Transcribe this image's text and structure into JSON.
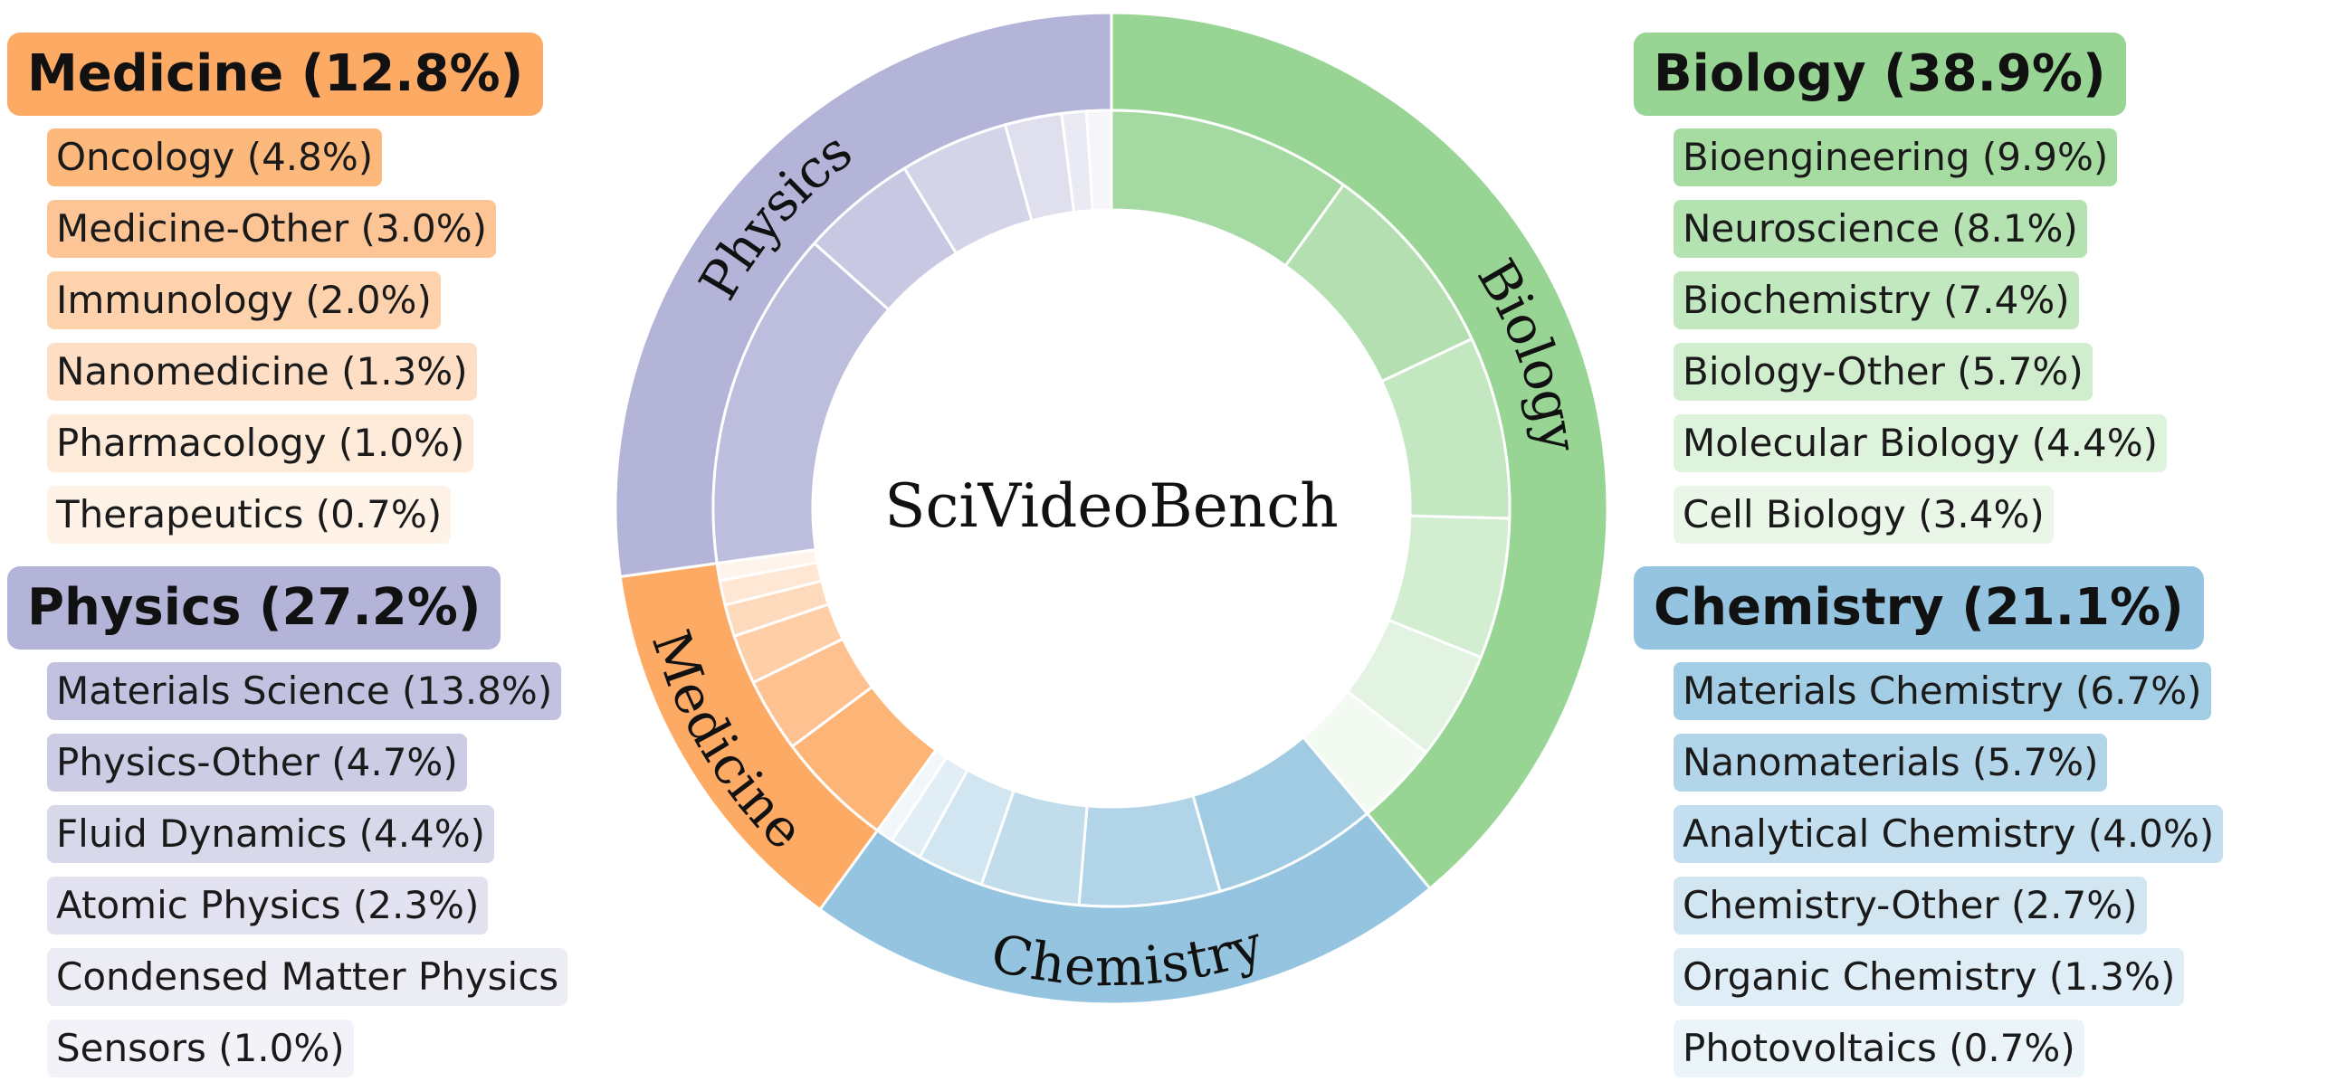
{
  "chart_data": {
    "type": "pie",
    "title": "SciVideoBench",
    "categories": [
      {
        "name": "Biology",
        "label": "Biology (38.9%)",
        "value": 38.9,
        "color": "#98d594",
        "side": "right",
        "subcategories": [
          {
            "label": "Bioengineering (9.9%)",
            "value": 9.9
          },
          {
            "label": "Neuroscience (8.1%)",
            "value": 8.1
          },
          {
            "label": "Biochemistry (7.4%)",
            "value": 7.4
          },
          {
            "label": "Biology-Other (5.7%)",
            "value": 5.7
          },
          {
            "label": "Molecular Biology (4.4%)",
            "value": 4.4
          },
          {
            "label": "Cell Biology (3.4%)",
            "value": 3.4
          }
        ]
      },
      {
        "name": "Chemistry",
        "label": "Chemistry (21.1%)",
        "value": 21.1,
        "color": "#94c4df",
        "side": "right",
        "subcategories": [
          {
            "label": "Materials Chemistry (6.7%)",
            "value": 6.7
          },
          {
            "label": "Nanomaterials (5.7%)",
            "value": 5.7
          },
          {
            "label": "Analytical Chemistry (4.0%)",
            "value": 4.0
          },
          {
            "label": "Chemistry-Other (2.7%)",
            "value": 2.7
          },
          {
            "label": "Organic Chemistry (1.3%)",
            "value": 1.3
          },
          {
            "label": "Photovoltaics (0.7%)",
            "value": 0.7
          }
        ]
      },
      {
        "name": "Medicine",
        "label": "Medicine (12.8%)",
        "value": 12.8,
        "color": "#fdaa65",
        "side": "left",
        "subcategories": [
          {
            "label": "Oncology (4.8%)",
            "value": 4.8
          },
          {
            "label": "Medicine-Other (3.0%)",
            "value": 3.0
          },
          {
            "label": "Immunology (2.0%)",
            "value": 2.0
          },
          {
            "label": "Nanomedicine (1.3%)",
            "value": 1.3
          },
          {
            "label": "Pharmacology (1.0%)",
            "value": 1.0
          },
          {
            "label": "Therapeutics (0.7%)",
            "value": 0.7
          }
        ]
      },
      {
        "name": "Physics",
        "label": "Physics (27.2%)",
        "value": 27.2,
        "color": "#b4b4d8",
        "side": "left",
        "subcategories": [
          {
            "label": "Materials Science (13.8%)",
            "value": 13.8
          },
          {
            "label": "Physics-Other (4.7%)",
            "value": 4.7
          },
          {
            "label": "Fluid Dynamics (4.4%)",
            "value": 4.4
          },
          {
            "label": "Atomic Physics (2.3%)",
            "value": 2.3
          },
          {
            "label": "Condensed Matter Physics",
            "value": 1.0
          },
          {
            "label": "Sensors (1.0%)",
            "value": 1.0
          }
        ]
      }
    ]
  }
}
